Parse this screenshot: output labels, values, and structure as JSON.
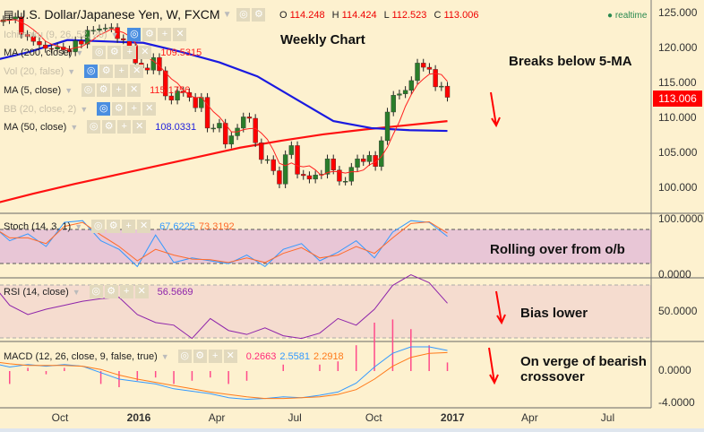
{
  "header": {
    "symbol_title": "U.S. Dollar/Japanese Yen, W, FXCM",
    "ohlc": {
      "o_label": "O",
      "o": "114.248",
      "h_label": "H",
      "h": "114.424",
      "l_label": "L",
      "l": "112.523",
      "c_label": "C",
      "c": "113.006"
    },
    "realtime": "realtime"
  },
  "legend": [
    {
      "label": "Ichimoku (9, 26, 52, 26)",
      "value": "",
      "faded": true
    },
    {
      "label": "MA (200, close)",
      "value": "109.5315",
      "color": "#ff2020"
    },
    {
      "label": "Vol (20, false)",
      "value": "",
      "faded": true
    },
    {
      "label": "MA (5, close)",
      "value": "115.1756",
      "color": "#ff2020"
    },
    {
      "label": "BB (20, close, 2)",
      "value": "",
      "faded": true
    },
    {
      "label": "MA (50, close)",
      "value": "108.0331",
      "color": "#2222dd"
    }
  ],
  "indicators": {
    "stoch": {
      "label": "Stoch (14, 3, 1)",
      "k_value": "67.6225",
      "d_value": "73.3192"
    },
    "rsi": {
      "label": "RSI (14, close)",
      "value": "56.5669"
    },
    "macd": {
      "label": "MACD (12, 26, close, 9, false, true)",
      "hist_value": "0.2663",
      "macd_value": "2.5581",
      "signal_value": "2.2918"
    }
  },
  "annotations": {
    "weekly": "Weekly Chart",
    "price": "Breaks below 5-MA",
    "stoch": "Rolling over from o/b",
    "rsi": "Bias lower",
    "macd_line1": "On verge of bearish",
    "macd_line2": "crossover"
  },
  "price_axis": [
    "125.000",
    "120.000",
    "115.000",
    "110.000",
    "105.000",
    "100.000"
  ],
  "last_price": "113.006",
  "stoch_axis": [
    "100.0000",
    "0.0000"
  ],
  "rsi_axis": [
    "50.0000"
  ],
  "macd_axis": [
    "0.0000",
    "-4.0000"
  ],
  "time_axis": [
    {
      "label": "Oct",
      "date": "2015-10-01"
    },
    {
      "label": "2016",
      "date": "2016-01-01",
      "bold": true
    },
    {
      "label": "Apr",
      "date": "2016-04-01"
    },
    {
      "label": "Jul",
      "date": "2016-07-01"
    },
    {
      "label": "Oct",
      "date": "2016-10-01"
    },
    {
      "label": "2017",
      "date": "2017-01-01",
      "bold": true
    },
    {
      "label": "Apr",
      "date": "2017-04-01"
    },
    {
      "label": "Jul",
      "date": "2017-07-01"
    }
  ],
  "colors": {
    "background": "#fdf1cf",
    "up": "#2a7d2a",
    "down": "#ff0000",
    "ma5": "#ff2020",
    "ma50": "#1a1ae0",
    "ma200": "#ff1010",
    "stoch_k": "#3399ff",
    "stoch_d": "#ff6a2a",
    "rsi": "#8e24aa",
    "macd": "#3399ff",
    "signal": "#ff7a1a",
    "hist": "#ff4a8a",
    "stoch_band": "#e8c6d6",
    "rsi_band": "#f5dccf"
  },
  "chart_data": {
    "type": "candlestick",
    "interval": "weekly",
    "first_week": "2015-07-13",
    "ylim": [
      97,
      126
    ],
    "closes": [
      124.0,
      123.8,
      124.1,
      124.2,
      124.5,
      122.0,
      121.7,
      121.0,
      120.5,
      120.0,
      119.9,
      120.2,
      119.8,
      119.5,
      121.1,
      120.6,
      122.6,
      122.6,
      122.8,
      122.9,
      123.0,
      121.4,
      121.2,
      120.3,
      117.9,
      117.2,
      116.9,
      118.7,
      116.8,
      113.2,
      112.6,
      113.9,
      113.7,
      113.0,
      111.5,
      113.0,
      108.6,
      108.6,
      109.3,
      106.3,
      107.5,
      108.6,
      110.2,
      110.0,
      106.5,
      104.1,
      104.1,
      102.5,
      100.6,
      104.8,
      106.1,
      102.0,
      101.8,
      101.3,
      101.9,
      102.0,
      104.2,
      102.6,
      101.0,
      101.0,
      103.0,
      104.2,
      103.8,
      104.7,
      103.1,
      106.8,
      110.9,
      113.3,
      113.5,
      114.0,
      115.4,
      117.9,
      117.3,
      117.0,
      114.5,
      114.6,
      113.006
    ],
    "ma50": [
      118.2,
      119.5,
      121.2,
      121.0,
      120.8,
      119.5,
      118.0,
      116.0,
      112.8,
      109.6,
      108.6,
      108.3,
      108.2
    ],
    "ma200": [
      97.7,
      99.2,
      100.6,
      101.9,
      103.2,
      104.5,
      105.8,
      106.8,
      107.7,
      108.4,
      109.0,
      109.6
    ],
    "stoch_k": [
      88,
      60,
      72,
      50,
      92,
      95,
      60,
      45,
      15,
      70,
      22,
      30,
      25,
      20,
      35,
      15,
      45,
      55,
      25,
      40,
      60,
      30,
      75,
      95,
      92,
      67.6225
    ],
    "stoch_d": [
      85,
      65,
      65,
      55,
      85,
      92,
      70,
      50,
      25,
      45,
      35,
      28,
      27,
      22,
      30,
      22,
      38,
      48,
      30,
      35,
      50,
      38,
      65,
      90,
      93,
      73.3192
    ],
    "rsi": [
      72,
      55,
      48,
      52,
      55,
      58,
      60,
      61,
      48,
      42,
      40,
      30,
      45,
      36,
      33,
      38,
      32,
      30,
      34,
      45,
      40,
      52,
      70,
      78,
      72,
      56.5669
    ],
    "macd": [
      1.0,
      0.5,
      0.8,
      0.6,
      0.8,
      0.6,
      -0.2,
      -1.0,
      -1.3,
      -1.6,
      -2.2,
      -2.5,
      -2.8,
      -3.3,
      -3.5,
      -3.4,
      -3.2,
      -3.3,
      -3.0,
      -2.6,
      -1.5,
      0.5,
      2.2,
      3.0,
      3.0,
      2.5581
    ],
    "signal": [
      1.2,
      0.9,
      0.7,
      0.7,
      0.7,
      0.6,
      0.2,
      -0.5,
      -1.0,
      -1.4,
      -1.8,
      -2.2,
      -2.6,
      -2.9,
      -3.2,
      -3.4,
      -3.4,
      -3.3,
      -3.2,
      -2.9,
      -2.3,
      -1.0,
      0.6,
      1.7,
      2.2,
      2.2918
    ]
  }
}
